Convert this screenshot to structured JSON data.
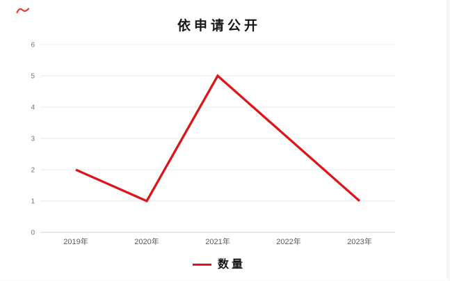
{
  "window": {
    "background": "#ffffff",
    "right_edge_color": "#f6f6f7"
  },
  "annotation": {
    "mark_color": "#e23a33"
  },
  "chart_data": {
    "type": "line",
    "title": "依申请公开",
    "categories": [
      "2019年",
      "2020年",
      "2021年",
      "2022年",
      "2023年"
    ],
    "series": [
      {
        "name": "数量",
        "values": [
          2,
          1,
          5,
          3,
          1
        ],
        "color": "#df1418",
        "line_width": 3.3
      }
    ],
    "xlabel": "",
    "ylabel": "",
    "ylim": [
      0,
      6
    ],
    "yticks": [
      0,
      1,
      2,
      3,
      4,
      5,
      6
    ],
    "grid": true,
    "gridline_color": "#e9e9e9",
    "axis_line_color": "#d2d2d2",
    "ytick_label_color": "#737373",
    "xtick_label_color": "#595959",
    "legend_position": "bottom"
  }
}
